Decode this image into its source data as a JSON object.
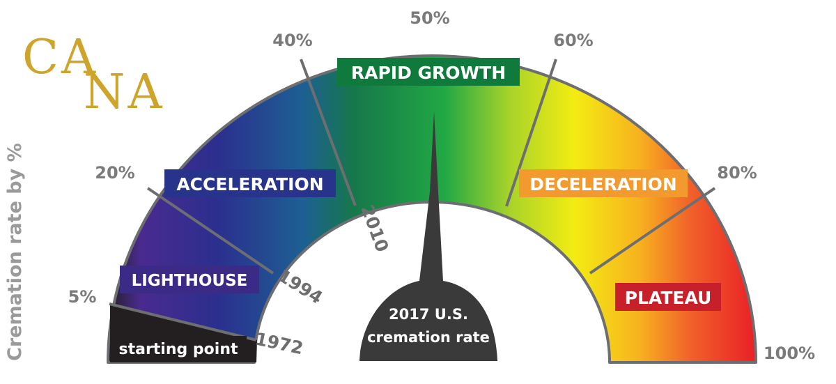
{
  "logo": {
    "line1": "CA",
    "line2": "NA"
  },
  "axis_title": "Cremation rate by %",
  "percent_labels": [
    "5%",
    "20%",
    "40%",
    "50%",
    "60%",
    "80%",
    "100%"
  ],
  "year_labels": [
    "1972",
    "1994",
    "2010"
  ],
  "stages": [
    {
      "label": "starting point",
      "box_color": "#231f20"
    },
    {
      "label": "LIGHTHOUSE",
      "box_color": "#3b2a86"
    },
    {
      "label": "ACCELERATION",
      "box_color": "#28348c"
    },
    {
      "label": "RAPID GROWTH",
      "box_color": "#0f7a3c"
    },
    {
      "label": "DECELERATION",
      "box_color": "#f29a2e"
    },
    {
      "label": "PLATEAU",
      "box_color": "#c8202b"
    }
  ],
  "needle": {
    "line1": "2017 U.S.",
    "line2": "cremation rate",
    "value_percent": 51
  },
  "colors": {
    "outline": "#6d6e71",
    "needle": "#3a3a3a",
    "logo": "#cfa42b"
  }
}
